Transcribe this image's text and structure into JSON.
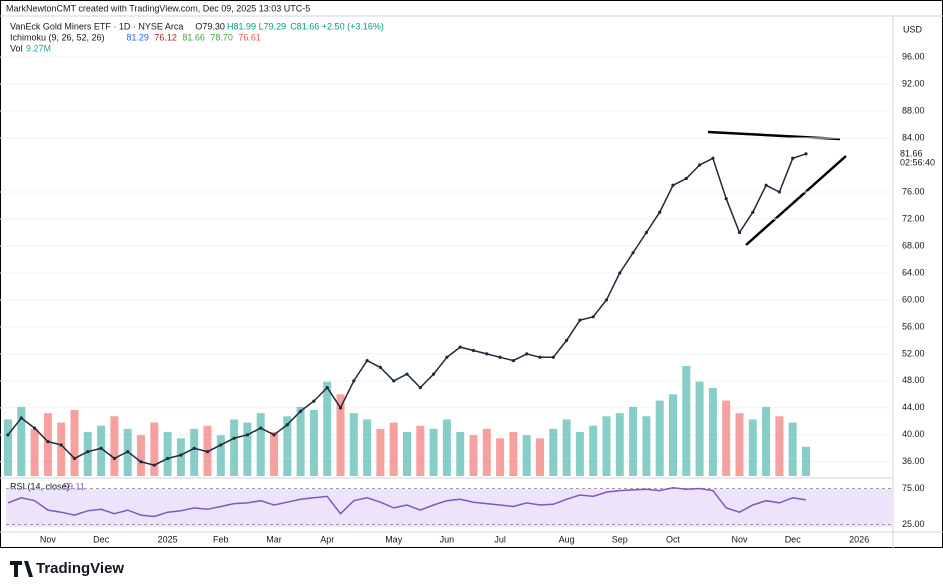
{
  "header": {
    "credit": "MarkNewtonCMT created with TradingView.com, Dec 09, 2025 13:03 UTC-5",
    "symbol": "VanEck Gold Miners ETF · 1D · NYSE Arca",
    "ohlc": [
      "O79.30",
      "H81.99",
      "L79.29",
      "C81.66",
      "+2.50 (+3.16%)"
    ],
    "ichimoku": {
      "label": "Ichimoku (9, 26, 52, 26)",
      "values": [
        "81.29",
        "76.12",
        "81.66",
        "78.70",
        "76.61"
      ]
    },
    "vol": {
      "label": "Vol",
      "value": "9.27M"
    },
    "currency": "USD",
    "last_price": "81.66",
    "countdown": "02:56:40",
    "brand": "TradingView"
  },
  "chart_data": [
    {
      "type": "line",
      "color": "#1e2a3a",
      "categories": [
        null,
        null,
        null,
        "Nov",
        null,
        null,
        null,
        "Dec",
        null,
        null,
        null,
        null,
        "2025",
        null,
        null,
        null,
        "Feb",
        null,
        null,
        null,
        "Mar",
        null,
        null,
        null,
        "Apr",
        null,
        null,
        null,
        null,
        "May",
        null,
        null,
        null,
        "Jun",
        null,
        null,
        null,
        "Jul",
        null,
        null,
        null,
        null,
        "Aug",
        null,
        null,
        null,
        "Sep",
        null,
        null,
        null,
        "Oct",
        null,
        null,
        null,
        null,
        "Nov",
        null,
        null,
        null,
        "Dec",
        null,
        null,
        null,
        null,
        "2026",
        null
      ],
      "values": [
        40,
        42.5,
        41,
        39,
        38.5,
        36.5,
        37.5,
        38,
        36.5,
        37.5,
        36,
        35.5,
        36.5,
        37,
        38,
        37.5,
        38.5,
        39.5,
        40,
        41,
        40,
        41.5,
        43.5,
        45,
        47,
        44,
        48,
        51,
        50,
        48,
        49,
        47,
        49,
        51.5,
        53,
        52.5,
        52,
        51.5,
        51,
        52,
        51.5,
        51.5,
        54,
        57,
        57.5,
        60,
        64,
        67,
        70,
        73,
        77,
        78,
        80,
        81,
        75,
        70,
        73,
        77,
        76,
        81,
        81.66,
        null,
        null,
        null,
        null,
        null
      ],
      "volume": [
        18,
        22,
        15,
        20,
        17,
        21,
        14,
        16,
        19,
        15,
        13,
        17,
        14,
        12,
        15,
        16,
        13,
        18,
        17,
        20,
        14,
        19,
        22,
        21,
        30,
        26,
        20,
        18,
        15,
        17,
        14,
        16,
        15,
        18,
        14,
        13,
        15,
        12,
        14,
        13,
        12,
        15,
        18,
        14,
        16,
        19,
        20,
        22,
        19,
        24,
        26,
        35,
        30,
        28,
        24,
        20,
        18,
        22,
        19,
        17,
        9.27,
        null,
        null,
        null,
        null,
        null
      ],
      "ylim": [
        33.6,
        101.5
      ],
      "yticks": [
        {
          "value": 96,
          "label": "96.00"
        },
        {
          "value": 92,
          "label": "92.00"
        },
        {
          "value": 88,
          "label": "88.00"
        },
        {
          "value": 84,
          "label": "84.00"
        },
        {
          "value": 76,
          "label": "76.00"
        },
        {
          "value": 72,
          "label": "72.00"
        },
        {
          "value": 68,
          "label": "68.00"
        },
        {
          "value": 64,
          "label": "64.00"
        },
        {
          "value": 60,
          "label": "60.00"
        },
        {
          "value": 56,
          "label": "56.00"
        },
        {
          "value": 52,
          "label": "52.00"
        },
        {
          "value": 48,
          "label": "48.00"
        },
        {
          "value": 44,
          "label": "44.00"
        },
        {
          "value": 40,
          "label": "40.00"
        },
        {
          "value": 36,
          "label": "36.00"
        }
      ]
    },
    {
      "type": "line",
      "title": "RSI (14, close)",
      "value_label": "59.11",
      "color": "#7e57c2",
      "values": [
        55,
        62,
        58,
        45,
        42,
        38,
        44,
        46,
        40,
        45,
        38,
        36,
        42,
        44,
        48,
        46,
        50,
        54,
        55,
        58,
        52,
        56,
        60,
        62,
        64,
        40,
        58,
        62,
        56,
        48,
        52,
        45,
        52,
        58,
        60,
        56,
        54,
        52,
        50,
        55,
        52,
        53,
        60,
        66,
        64,
        70,
        72,
        73,
        74,
        72,
        76,
        74,
        75,
        72,
        48,
        42,
        52,
        58,
        55,
        62,
        59.11,
        null,
        null,
        null,
        null,
        null
      ],
      "ylim": [
        14.5,
        86.8
      ],
      "yticks": [
        {
          "value": 75,
          "label": "75.00"
        },
        {
          "value": 25,
          "label": "25.00"
        }
      ]
    }
  ]
}
